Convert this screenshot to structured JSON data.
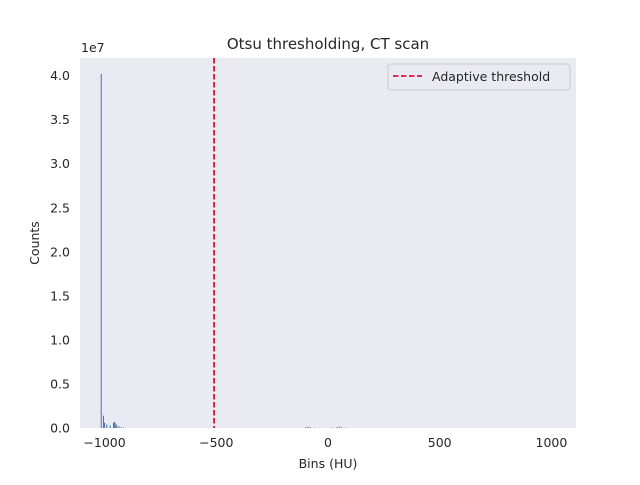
{
  "chart_data": {
    "type": "bar",
    "title": "Otsu thresholding, CT scan",
    "xlabel": "Bins (HU)",
    "ylabel": "Counts",
    "y_offset_label": "1e7",
    "y_scale": 10000000,
    "xlim": [
      -1110,
      1110
    ],
    "ylim": [
      0,
      4.2
    ],
    "grid": false,
    "background_color": "#eaeaf2",
    "bar_color": "#4c72b0",
    "line_color": "#dc143c",
    "x_ticks": [
      -1000,
      -500,
      0,
      500,
      1000
    ],
    "x_tick_labels": [
      "−1000",
      "−500",
      "0",
      "500",
      "1000"
    ],
    "y_ticks": [
      0,
      0.5,
      1.0,
      1.5,
      2.0,
      2.5,
      3.0,
      3.5,
      4.0
    ],
    "y_tick_labels": [
      "0.0",
      "0.5",
      "1.0",
      "1.5",
      "2.0",
      "2.5",
      "3.0",
      "3.5",
      "4.0"
    ],
    "bin_width": 5,
    "bars": [
      {
        "x": -1015,
        "value": 4.02
      },
      {
        "x": -1005,
        "value": 0.14
      },
      {
        "x": -1000,
        "value": 0.06
      },
      {
        "x": -990,
        "value": 0.04
      },
      {
        "x": -975,
        "value": 0.03
      },
      {
        "x": -960,
        "value": 0.06
      },
      {
        "x": -955,
        "value": 0.07
      },
      {
        "x": -950,
        "value": 0.05
      },
      {
        "x": -945,
        "value": 0.03
      },
      {
        "x": -935,
        "value": 0.02
      },
      {
        "x": -925,
        "value": 0.01
      },
      {
        "x": -915,
        "value": 0.005
      },
      {
        "x": -100,
        "value": 0.01
      },
      {
        "x": -90,
        "value": 0.015
      },
      {
        "x": -80,
        "value": 0.01
      },
      {
        "x": -60,
        "value": 0.005
      },
      {
        "x": 20,
        "value": 0.005
      },
      {
        "x": 40,
        "value": 0.01
      },
      {
        "x": 50,
        "value": 0.015
      },
      {
        "x": 60,
        "value": 0.01
      },
      {
        "x": 80,
        "value": 0.005
      }
    ],
    "threshold": {
      "x": -510,
      "label": "Adaptive threshold"
    },
    "legend_position": "upper right"
  }
}
